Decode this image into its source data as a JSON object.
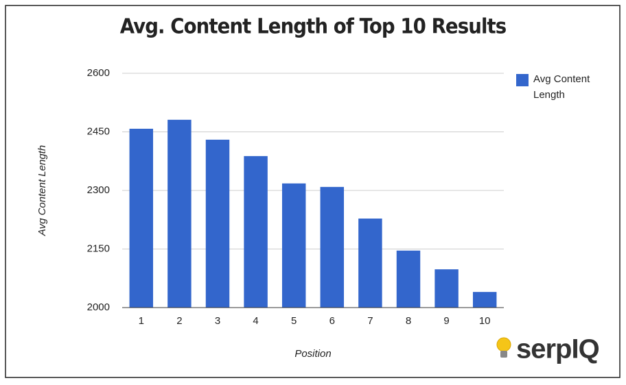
{
  "chart_data": {
    "type": "bar",
    "title": "Avg. Content Length of Top 10 Results",
    "x_label": "Position",
    "y_label": "Avg Content Length",
    "categories": [
      "1",
      "2",
      "3",
      "4",
      "5",
      "6",
      "7",
      "8",
      "9",
      "10"
    ],
    "series": [
      {
        "name": "Avg Content Length",
        "color": "#3366cc",
        "values": [
          2458,
          2481,
          2430,
          2388,
          2318,
          2309,
          2228,
          2146,
          2098,
          2040
        ]
      }
    ],
    "ylim": [
      2000,
      2600
    ],
    "yticks": [
      2000,
      2150,
      2300,
      2450,
      2600
    ],
    "grid": true,
    "legend": "right",
    "logo": "serpIQ"
  }
}
